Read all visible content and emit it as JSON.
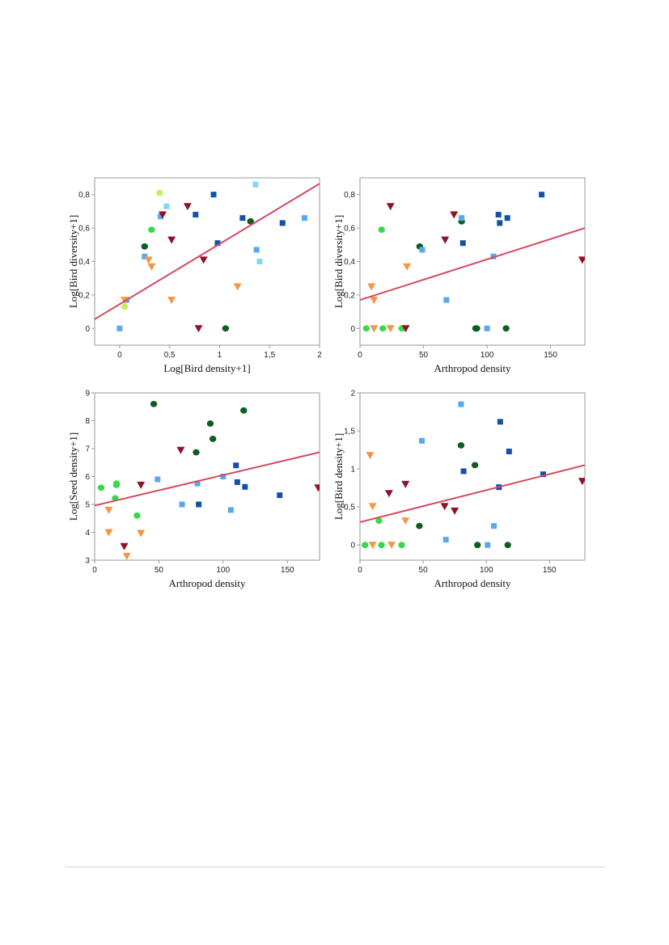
{
  "colors": {
    "frame": "#9a9a9a",
    "regression": "#d44a5e",
    "light_green": "#37d94a",
    "yellow_green": "#c5ee58",
    "dark_green": "#0e5e20",
    "orange": "#f59644",
    "maroon": "#8e1228",
    "sky_blue": "#5aa7ef",
    "cyan": "#7fd8f4",
    "navy": "#1451a6"
  },
  "marker_shapes": {
    "circle": "circle-marker",
    "triangle": "down-triangle-marker",
    "square": "square-marker"
  },
  "chart_data": [
    {
      "id": "a",
      "type": "scatter",
      "xlabel": "Log[Bird density+1]",
      "ylabel": "Log[Bird diversity+1]",
      "xlim": [
        -0.25,
        2.0
      ],
      "ylim": [
        -0.1,
        0.9
      ],
      "xticks": [
        0,
        0.5,
        1,
        1.5,
        2
      ],
      "xtick_labels": [
        "0",
        "0,5",
        "1",
        "1,5",
        "2"
      ],
      "yticks": [
        0,
        0.2,
        0.4,
        0.6,
        0.8
      ],
      "ytick_labels": [
        "0",
        "0,2",
        "0,4",
        "0,6",
        "0,8"
      ],
      "grid": false,
      "regression_line": [
        [
          -0.25,
          0.055
        ],
        [
          2.0,
          0.865
        ]
      ],
      "points": [
        {
          "x": 0.0,
          "y": 0.0,
          "shape": "square",
          "color": "sky_blue"
        },
        {
          "x": 0.07,
          "y": 0.17,
          "shape": "square",
          "color": "sky_blue"
        },
        {
          "x": 0.05,
          "y": 0.17,
          "shape": "triangle",
          "color": "orange"
        },
        {
          "x": 0.05,
          "y": 0.13,
          "shape": "circle",
          "color": "yellow_green"
        },
        {
          "x": 0.25,
          "y": 0.43,
          "shape": "square",
          "color": "sky_blue"
        },
        {
          "x": 0.29,
          "y": 0.41,
          "shape": "triangle",
          "color": "orange"
        },
        {
          "x": 0.25,
          "y": 0.49,
          "shape": "circle",
          "color": "dark_green"
        },
        {
          "x": 0.32,
          "y": 0.37,
          "shape": "triangle",
          "color": "orange"
        },
        {
          "x": 0.32,
          "y": 0.59,
          "shape": "circle",
          "color": "light_green"
        },
        {
          "x": 0.4,
          "y": 0.81,
          "shape": "circle",
          "color": "yellow_green"
        },
        {
          "x": 0.41,
          "y": 0.67,
          "shape": "square",
          "color": "sky_blue"
        },
        {
          "x": 0.43,
          "y": 0.68,
          "shape": "triangle",
          "color": "maroon"
        },
        {
          "x": 0.47,
          "y": 0.73,
          "shape": "square",
          "color": "cyan"
        },
        {
          "x": 0.52,
          "y": 0.53,
          "shape": "triangle",
          "color": "maroon"
        },
        {
          "x": 0.52,
          "y": 0.17,
          "shape": "triangle",
          "color": "orange"
        },
        {
          "x": 0.68,
          "y": 0.73,
          "shape": "triangle",
          "color": "maroon"
        },
        {
          "x": 0.76,
          "y": 0.68,
          "shape": "square",
          "color": "navy"
        },
        {
          "x": 0.79,
          "y": 0.0,
          "shape": "triangle",
          "color": "maroon"
        },
        {
          "x": 0.84,
          "y": 0.41,
          "shape": "triangle",
          "color": "maroon"
        },
        {
          "x": 0.94,
          "y": 0.8,
          "shape": "square",
          "color": "navy"
        },
        {
          "x": 0.98,
          "y": 0.51,
          "shape": "square",
          "color": "navy"
        },
        {
          "x": 1.06,
          "y": 0.0,
          "shape": "circle",
          "color": "dark_green"
        },
        {
          "x": 1.18,
          "y": 0.25,
          "shape": "triangle",
          "color": "orange"
        },
        {
          "x": 1.23,
          "y": 0.66,
          "shape": "square",
          "color": "navy"
        },
        {
          "x": 1.31,
          "y": 0.64,
          "shape": "circle",
          "color": "dark_green"
        },
        {
          "x": 1.36,
          "y": 0.86,
          "shape": "square",
          "color": "cyan"
        },
        {
          "x": 1.37,
          "y": 0.47,
          "shape": "square",
          "color": "sky_blue"
        },
        {
          "x": 1.4,
          "y": 0.4,
          "shape": "square",
          "color": "cyan"
        },
        {
          "x": 1.63,
          "y": 0.63,
          "shape": "square",
          "color": "navy"
        },
        {
          "x": 1.85,
          "y": 0.66,
          "shape": "square",
          "color": "sky_blue"
        }
      ]
    },
    {
      "id": "b",
      "type": "scatter",
      "xlabel": "Arthropod density",
      "ylabel": "Log[Bird diversity+1]",
      "xlim": [
        0,
        177
      ],
      "ylim": [
        -0.1,
        0.9
      ],
      "xticks": [
        0,
        50,
        100,
        150
      ],
      "xtick_labels": [
        "0",
        "50",
        "100",
        "150"
      ],
      "yticks": [
        0,
        0.2,
        0.4,
        0.6,
        0.8
      ],
      "ytick_labels": [
        "0",
        "0,2",
        "0,4",
        "0,6",
        "0,8"
      ],
      "grid": false,
      "regression_line": [
        [
          0,
          0.17
        ],
        [
          177,
          0.6
        ]
      ],
      "points": [
        {
          "x": 5,
          "y": 0.0,
          "shape": "circle",
          "color": "light_green"
        },
        {
          "x": 9,
          "y": 0.25,
          "shape": "triangle",
          "color": "orange"
        },
        {
          "x": 11,
          "y": 0.17,
          "shape": "triangle",
          "color": "orange"
        },
        {
          "x": 11,
          "y": 0.0,
          "shape": "triangle",
          "color": "orange"
        },
        {
          "x": 17,
          "y": 0.59,
          "shape": "circle",
          "color": "light_green"
        },
        {
          "x": 18,
          "y": 0.0,
          "shape": "circle",
          "color": "light_green"
        },
        {
          "x": 24,
          "y": 0.0,
          "shape": "triangle",
          "color": "orange"
        },
        {
          "x": 24,
          "y": 0.73,
          "shape": "triangle",
          "color": "maroon"
        },
        {
          "x": 33,
          "y": 0.0,
          "shape": "circle",
          "color": "light_green"
        },
        {
          "x": 36,
          "y": 0.0,
          "shape": "triangle",
          "color": "maroon"
        },
        {
          "x": 37,
          "y": 0.37,
          "shape": "triangle",
          "color": "orange"
        },
        {
          "x": 47,
          "y": 0.49,
          "shape": "circle",
          "color": "dark_green"
        },
        {
          "x": 49,
          "y": 0.47,
          "shape": "square",
          "color": "sky_blue"
        },
        {
          "x": 67,
          "y": 0.53,
          "shape": "triangle",
          "color": "maroon"
        },
        {
          "x": 68,
          "y": 0.17,
          "shape": "square",
          "color": "sky_blue"
        },
        {
          "x": 74,
          "y": 0.68,
          "shape": "triangle",
          "color": "maroon"
        },
        {
          "x": 80,
          "y": 0.64,
          "shape": "circle",
          "color": "dark_green"
        },
        {
          "x": 80,
          "y": 0.66,
          "shape": "square",
          "color": "sky_blue"
        },
        {
          "x": 81,
          "y": 0.51,
          "shape": "square",
          "color": "navy"
        },
        {
          "x": 91,
          "y": 0.0,
          "shape": "circle",
          "color": "dark_green"
        },
        {
          "x": 92,
          "y": 0.0,
          "shape": "circle",
          "color": "dark_green"
        },
        {
          "x": 100,
          "y": 0.0,
          "shape": "square",
          "color": "sky_blue"
        },
        {
          "x": 105,
          "y": 0.43,
          "shape": "square",
          "color": "sky_blue"
        },
        {
          "x": 109,
          "y": 0.68,
          "shape": "square",
          "color": "navy"
        },
        {
          "x": 110,
          "y": 0.63,
          "shape": "square",
          "color": "navy"
        },
        {
          "x": 115,
          "y": 0.0,
          "shape": "circle",
          "color": "dark_green"
        },
        {
          "x": 116,
          "y": 0.66,
          "shape": "square",
          "color": "navy"
        },
        {
          "x": 143,
          "y": 0.8,
          "shape": "square",
          "color": "navy"
        },
        {
          "x": 175,
          "y": 0.41,
          "shape": "triangle",
          "color": "maroon"
        }
      ]
    },
    {
      "id": "c",
      "type": "scatter",
      "xlabel": "Arthropod density",
      "ylabel": "Log[Seed density+1]",
      "xlim": [
        0,
        175
      ],
      "ylim": [
        3,
        9
      ],
      "xticks": [
        0,
        50,
        100,
        150
      ],
      "xtick_labels": [
        "0",
        "50",
        "100",
        "150"
      ],
      "yticks": [
        3,
        4,
        5,
        6,
        7,
        8,
        9
      ],
      "ytick_labels": [
        "3",
        "4",
        "5",
        "6",
        "7",
        "8",
        "9"
      ],
      "grid": false,
      "regression_line": [
        [
          0,
          4.96
        ],
        [
          175,
          6.87
        ]
      ],
      "points": [
        {
          "x": 5,
          "y": 5.6,
          "shape": "circle",
          "color": "light_green"
        },
        {
          "x": 11,
          "y": 4.8,
          "shape": "triangle",
          "color": "orange"
        },
        {
          "x": 11,
          "y": 4.0,
          "shape": "triangle",
          "color": "orange"
        },
        {
          "x": 16,
          "y": 5.22,
          "shape": "circle",
          "color": "light_green"
        },
        {
          "x": 17,
          "y": 5.7,
          "shape": "circle",
          "color": "light_green"
        },
        {
          "x": 17,
          "y": 5.75,
          "shape": "circle",
          "color": "light_green"
        },
        {
          "x": 23,
          "y": 3.5,
          "shape": "triangle",
          "color": "maroon"
        },
        {
          "x": 25,
          "y": 3.15,
          "shape": "triangle",
          "color": "orange"
        },
        {
          "x": 33,
          "y": 4.6,
          "shape": "circle",
          "color": "light_green"
        },
        {
          "x": 36,
          "y": 5.7,
          "shape": "triangle",
          "color": "maroon"
        },
        {
          "x": 36,
          "y": 3.97,
          "shape": "triangle",
          "color": "orange"
        },
        {
          "x": 46,
          "y": 8.6,
          "shape": "circle",
          "color": "dark_green"
        },
        {
          "x": 49,
          "y": 5.9,
          "shape": "square",
          "color": "sky_blue"
        },
        {
          "x": 67,
          "y": 6.95,
          "shape": "triangle",
          "color": "maroon"
        },
        {
          "x": 68,
          "y": 5.0,
          "shape": "square",
          "color": "sky_blue"
        },
        {
          "x": 79,
          "y": 6.87,
          "shape": "circle",
          "color": "dark_green"
        },
        {
          "x": 80,
          "y": 5.75,
          "shape": "square",
          "color": "sky_blue"
        },
        {
          "x": 81,
          "y": 5.0,
          "shape": "square",
          "color": "navy"
        },
        {
          "x": 90,
          "y": 7.9,
          "shape": "circle",
          "color": "dark_green"
        },
        {
          "x": 92,
          "y": 7.35,
          "shape": "circle",
          "color": "dark_green"
        },
        {
          "x": 100,
          "y": 6.0,
          "shape": "square",
          "color": "sky_blue"
        },
        {
          "x": 106,
          "y": 4.8,
          "shape": "square",
          "color": "sky_blue"
        },
        {
          "x": 110,
          "y": 6.4,
          "shape": "square",
          "color": "navy"
        },
        {
          "x": 111,
          "y": 5.8,
          "shape": "square",
          "color": "navy"
        },
        {
          "x": 116,
          "y": 8.37,
          "shape": "circle",
          "color": "dark_green"
        },
        {
          "x": 117,
          "y": 5.63,
          "shape": "square",
          "color": "navy"
        },
        {
          "x": 144,
          "y": 5.33,
          "shape": "square",
          "color": "navy"
        },
        {
          "x": 174,
          "y": 5.6,
          "shape": "triangle",
          "color": "maroon"
        }
      ]
    },
    {
      "id": "d",
      "type": "scatter",
      "xlabel": "Arthropod density",
      "ylabel": "Log[Bird density+1]",
      "xlim": [
        0,
        178
      ],
      "ylim": [
        -0.2,
        2
      ],
      "xticks": [
        0,
        50,
        100,
        150
      ],
      "xtick_labels": [
        "0",
        "50",
        "100",
        "150"
      ],
      "yticks": [
        0,
        0.5,
        1,
        1.5,
        2
      ],
      "ytick_labels": [
        "0",
        "0,5",
        "1",
        "1,5",
        "2"
      ],
      "grid": false,
      "regression_line": [
        [
          0,
          0.3
        ],
        [
          178,
          1.05
        ]
      ],
      "points": [
        {
          "x": 4,
          "y": 0.0,
          "shape": "circle",
          "color": "light_green"
        },
        {
          "x": 8,
          "y": 1.18,
          "shape": "triangle",
          "color": "orange"
        },
        {
          "x": 10,
          "y": 0.51,
          "shape": "triangle",
          "color": "orange"
        },
        {
          "x": 10,
          "y": 0.0,
          "shape": "triangle",
          "color": "orange"
        },
        {
          "x": 15,
          "y": 0.32,
          "shape": "circle",
          "color": "light_green"
        },
        {
          "x": 17,
          "y": 0.0,
          "shape": "circle",
          "color": "light_green"
        },
        {
          "x": 23,
          "y": 0.68,
          "shape": "triangle",
          "color": "maroon"
        },
        {
          "x": 25,
          "y": 0.0,
          "shape": "triangle",
          "color": "orange"
        },
        {
          "x": 33,
          "y": 0.0,
          "shape": "circle",
          "color": "light_green"
        },
        {
          "x": 36,
          "y": 0.8,
          "shape": "triangle",
          "color": "maroon"
        },
        {
          "x": 36,
          "y": 0.32,
          "shape": "triangle",
          "color": "orange"
        },
        {
          "x": 47,
          "y": 0.25,
          "shape": "circle",
          "color": "dark_green"
        },
        {
          "x": 49,
          "y": 1.37,
          "shape": "square",
          "color": "sky_blue"
        },
        {
          "x": 67,
          "y": 0.51,
          "shape": "triangle",
          "color": "maroon"
        },
        {
          "x": 68,
          "y": 0.07,
          "shape": "square",
          "color": "sky_blue"
        },
        {
          "x": 75,
          "y": 0.45,
          "shape": "triangle",
          "color": "maroon"
        },
        {
          "x": 80,
          "y": 1.31,
          "shape": "circle",
          "color": "dark_green"
        },
        {
          "x": 80,
          "y": 1.85,
          "shape": "square",
          "color": "sky_blue"
        },
        {
          "x": 82,
          "y": 0.97,
          "shape": "square",
          "color": "navy"
        },
        {
          "x": 91,
          "y": 1.05,
          "shape": "circle",
          "color": "dark_green"
        },
        {
          "x": 93,
          "y": 0.0,
          "shape": "circle",
          "color": "dark_green"
        },
        {
          "x": 101,
          "y": 0.0,
          "shape": "square",
          "color": "sky_blue"
        },
        {
          "x": 106,
          "y": 0.25,
          "shape": "square",
          "color": "sky_blue"
        },
        {
          "x": 110,
          "y": 0.76,
          "shape": "square",
          "color": "navy"
        },
        {
          "x": 111,
          "y": 1.62,
          "shape": "square",
          "color": "navy"
        },
        {
          "x": 117,
          "y": 0.0,
          "shape": "circle",
          "color": "dark_green"
        },
        {
          "x": 118,
          "y": 1.23,
          "shape": "square",
          "color": "navy"
        },
        {
          "x": 145,
          "y": 0.93,
          "shape": "square",
          "color": "navy"
        },
        {
          "x": 176,
          "y": 0.84,
          "shape": "triangle",
          "color": "maroon"
        }
      ]
    }
  ]
}
